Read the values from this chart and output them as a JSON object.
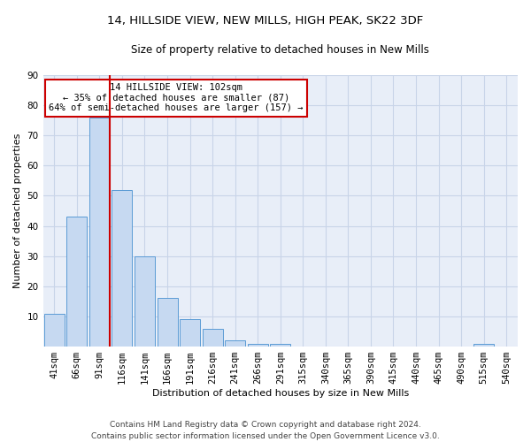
{
  "title": "14, HILLSIDE VIEW, NEW MILLS, HIGH PEAK, SK22 3DF",
  "subtitle": "Size of property relative to detached houses in New Mills",
  "xlabel": "Distribution of detached houses by size in New Mills",
  "ylabel": "Number of detached properties",
  "bar_labels": [
    "41sqm",
    "66sqm",
    "91sqm",
    "116sqm",
    "141sqm",
    "166sqm",
    "191sqm",
    "216sqm",
    "241sqm",
    "266sqm",
    "291sqm",
    "315sqm",
    "340sqm",
    "365sqm",
    "390sqm",
    "415sqm",
    "440sqm",
    "465sqm",
    "490sqm",
    "515sqm",
    "540sqm"
  ],
  "bar_values": [
    11,
    43,
    76,
    52,
    30,
    16,
    9,
    6,
    2,
    1,
    1,
    0,
    0,
    0,
    0,
    0,
    0,
    0,
    0,
    1,
    0
  ],
  "bar_color": "#c6d9f1",
  "bar_edge_color": "#5b9bd5",
  "vline_x_index": 2,
  "vline_color": "#cc0000",
  "annotation_text": "14 HILLSIDE VIEW: 102sqm\n← 35% of detached houses are smaller (87)\n64% of semi-detached houses are larger (157) →",
  "annotation_box_color": "#ffffff",
  "annotation_box_edge": "#cc0000",
  "ylim": [
    0,
    90
  ],
  "yticks": [
    0,
    10,
    20,
    30,
    40,
    50,
    60,
    70,
    80,
    90
  ],
  "grid_color": "#c8d4e8",
  "bg_color": "#e8eef8",
  "footer": "Contains HM Land Registry data © Crown copyright and database right 2024.\nContains public sector information licensed under the Open Government Licence v3.0.",
  "title_fontsize": 9.5,
  "subtitle_fontsize": 8.5,
  "xlabel_fontsize": 8,
  "ylabel_fontsize": 8,
  "tick_fontsize": 7.5,
  "footer_fontsize": 6.5,
  "annot_fontsize": 7.5
}
